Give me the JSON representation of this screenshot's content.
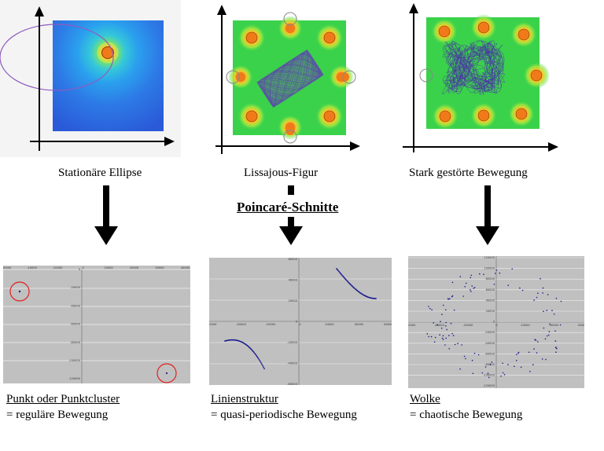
{
  "top": {
    "captions": [
      "Stationäre Ellipse",
      "Lissajous-Figur",
      "Stark gestörte Bewegung"
    ]
  },
  "center_label": "Poincaré-Schnitte",
  "bottom": {
    "panels": [
      {
        "title": "Punkt oder Punktcluster",
        "desc": "= reguläre Bewegung"
      },
      {
        "title": "Linienstruktur",
        "desc": "= quasi-periodische Bewegung"
      },
      {
        "title": "Wolke",
        "desc": "= chaotische Bewegung"
      }
    ]
  },
  "plot_ticks": {
    "p1_x": [
      "-30000",
      "-20000",
      "-10000",
      "0",
      "10000",
      "20000",
      "30000",
      "40000"
    ],
    "p1_y": [
      "0",
      "-20000",
      "-40000",
      "-60000",
      "-80000",
      "-100000",
      "-120000"
    ],
    "p2_x": [
      "-60000",
      "-40000",
      "-20000",
      "0",
      "20000",
      "40000",
      "60000"
    ],
    "p2_y": [
      "60000",
      "40000",
      "20000",
      "0",
      "-20000",
      "-40000",
      "-60000"
    ],
    "p3_x": [
      "-60000",
      "-40000",
      "-20000",
      "0",
      "20000",
      "40000",
      "60000"
    ],
    "p3_y": [
      "120000",
      "100000",
      "80000",
      "60000",
      "40000",
      "20000",
      "0",
      "-20000",
      "-40000",
      "-60000",
      "-80000",
      "-100000",
      "-120000"
    ]
  },
  "colors": {
    "blue_bg": "#2d6be0",
    "green_bg": "#3ad24b",
    "orange_spot": "#f07a1a",
    "plot_bg": "#c0c0c0",
    "dots": "#1a1a8c",
    "marker_circle": "#e02020"
  }
}
